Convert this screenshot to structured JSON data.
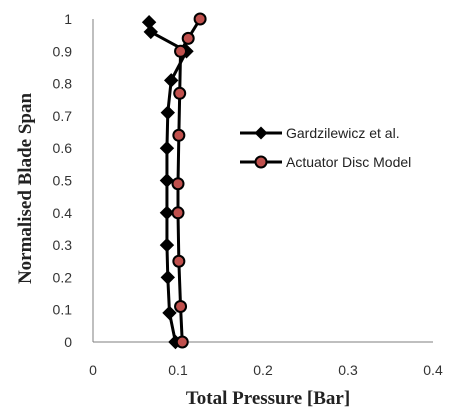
{
  "chart_data": {
    "type": "line",
    "xlabel": "Total Pressure [Bar]",
    "ylabel": "Normalised Blade Span",
    "xlim": [
      0,
      0.4
    ],
    "ylim": [
      0,
      1
    ],
    "x_ticks": [
      "0",
      "0.1",
      "0.2",
      "0.3",
      "0.4"
    ],
    "y_ticks": [
      "0",
      "0.1",
      "0.2",
      "0.3",
      "0.4",
      "0.5",
      "0.6",
      "0.7",
      "0.8",
      "0.9",
      "1"
    ],
    "grid": false,
    "legend_position": "right",
    "series": [
      {
        "name": "Gardzilewicz et al.",
        "marker": "diamond",
        "color": "#000000",
        "marker_fill": "#000000",
        "points": [
          {
            "x": 0.097,
            "y": 0.0
          },
          {
            "x": 0.09,
            "y": 0.09
          },
          {
            "x": 0.088,
            "y": 0.2
          },
          {
            "x": 0.087,
            "y": 0.3
          },
          {
            "x": 0.087,
            "y": 0.4
          },
          {
            "x": 0.087,
            "y": 0.5
          },
          {
            "x": 0.087,
            "y": 0.6
          },
          {
            "x": 0.088,
            "y": 0.71
          },
          {
            "x": 0.092,
            "y": 0.81
          },
          {
            "x": 0.11,
            "y": 0.9
          },
          {
            "x": 0.068,
            "y": 0.96
          },
          {
            "x": 0.066,
            "y": 0.99
          }
        ]
      },
      {
        "name": "Actuator Disc Model",
        "marker": "circle",
        "color": "#000000",
        "marker_fill": "#c0504d",
        "points": [
          {
            "x": 0.105,
            "y": 0.0
          },
          {
            "x": 0.103,
            "y": 0.11
          },
          {
            "x": 0.101,
            "y": 0.25
          },
          {
            "x": 0.1,
            "y": 0.4
          },
          {
            "x": 0.1,
            "y": 0.49
          },
          {
            "x": 0.101,
            "y": 0.64
          },
          {
            "x": 0.102,
            "y": 0.77
          },
          {
            "x": 0.103,
            "y": 0.9
          },
          {
            "x": 0.112,
            "y": 0.94
          },
          {
            "x": 0.126,
            "y": 1.0
          }
        ]
      }
    ]
  }
}
